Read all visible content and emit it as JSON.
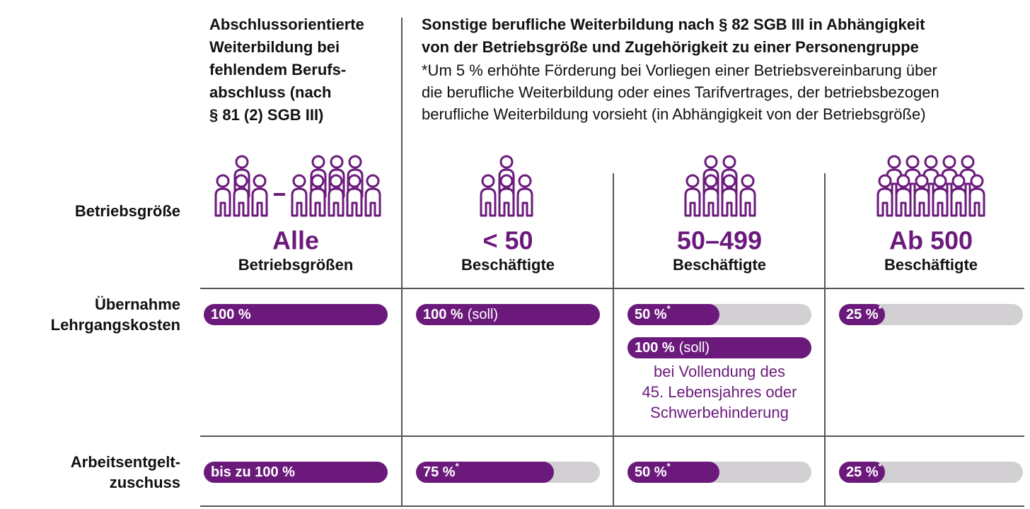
{
  "header": {
    "left": [
      "Abschlussorientierte",
      "Weiterbildung bei",
      "fehlendem Berufs-",
      "abschluss (nach",
      "§ 81 (2) SGB III)"
    ],
    "right_title": [
      "Sonstige berufliche Weiterbildung nach § 82 SGB III in Abhängigkeit",
      "von der Betriebsgröße und Zugehörigkeit zu einer Personengruppe"
    ],
    "right_note": [
      "*Um 5 % erhöhte Förderung bei Vorliegen einer Betriebsvereinbarung über",
      "die berufliche Weiterbildung oder eines Tarifvertrages, der betriebsbezogen",
      "berufliche Weiterbildung vorsieht (in Abhängigkeit von der Betriebsgröße)"
    ]
  },
  "row_labels": {
    "size": [
      "Betriebsgröße"
    ],
    "course_costs": [
      "Übernahme",
      "Lehrgangskosten"
    ],
    "wage_subsidy": [
      "Arbeitsentgelt-",
      "zuschuss"
    ]
  },
  "columns": [
    {
      "size": "Alle",
      "size_unit": "Betriebsgrößen",
      "course_costs": [
        {
          "value": 100,
          "value_label": "100 %"
        }
      ],
      "wage_subsidy": {
        "value": 100,
        "value_label": "bis zu 100 %"
      }
    },
    {
      "size": "< 50",
      "size_unit": "Beschäftigte",
      "course_costs": [
        {
          "value": 100,
          "value_label": "100 %",
          "suffix": "(soll)"
        }
      ],
      "wage_subsidy": {
        "value": 75,
        "value_label": "75 %",
        "note_mark": "*"
      }
    },
    {
      "size": "50–499",
      "size_unit": "Beschäftigte",
      "course_costs": [
        {
          "value": 50,
          "value_label": "50 %",
          "note_mark": "*"
        },
        {
          "value": 100,
          "value_label": "100 %",
          "suffix": "(soll)"
        }
      ],
      "course_costs_condition": [
        "bei Vollendung des",
        "45. Lebensjahres oder",
        "Schwerbehinderung"
      ],
      "wage_subsidy": {
        "value": 50,
        "value_label": "50 %",
        "note_mark": "*"
      }
    },
    {
      "size": "Ab 500",
      "size_unit": "Beschäftigte",
      "course_costs": [
        {
          "value": 25,
          "value_label": "25 %",
          "note_mark": "*"
        }
      ],
      "wage_subsidy": {
        "value": 25,
        "value_label": "25 %",
        "note_mark": "*"
      }
    }
  ]
}
